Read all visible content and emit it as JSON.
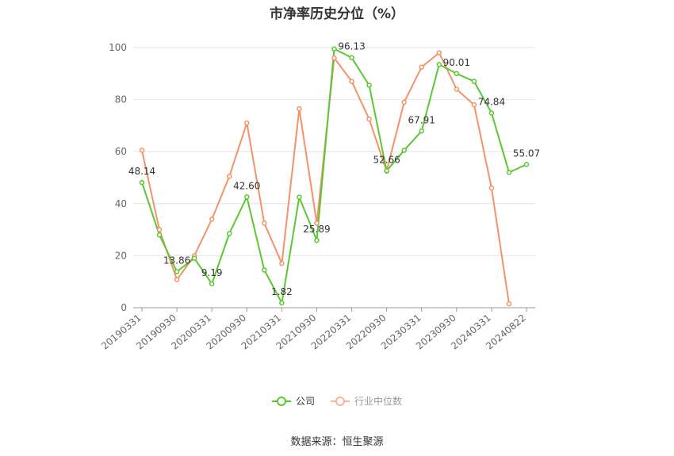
{
  "chart_data": {
    "type": "line",
    "title": "市净率历史分位（%）",
    "ylim": [
      0,
      100
    ],
    "yticks": [
      0,
      20,
      40,
      60,
      80,
      100
    ],
    "x_tick_labels": [
      "20190331",
      "20190930",
      "20200331",
      "20200930",
      "20210331",
      "20210930",
      "20220331",
      "20220930",
      "20230331",
      "20230930",
      "20240331",
      "20240822"
    ],
    "x": [
      "20190331",
      "20190630",
      "20190930",
      "20191231",
      "20200331",
      "20200630",
      "20200930",
      "20201231",
      "20210331",
      "20210630",
      "20210930",
      "20211231",
      "20220331",
      "20220630",
      "20220930",
      "20221231",
      "20230331",
      "20230630",
      "20230930",
      "20231231",
      "20240331",
      "20240630",
      "20240822"
    ],
    "series": [
      {
        "name": "公司",
        "color": "#5ac832",
        "values": [
          48.14,
          28.0,
          13.86,
          19.0,
          9.19,
          28.5,
          42.6,
          14.5,
          1.82,
          42.5,
          25.89,
          99.5,
          96.13,
          85.5,
          52.66,
          60.5,
          67.91,
          93.5,
          90.01,
          87.0,
          74.84,
          52.0,
          55.07
        ]
      },
      {
        "name": "行业中位数",
        "color": "#f4926a",
        "values": [
          60.5,
          30.0,
          10.8,
          20.0,
          34.0,
          50.5,
          71.0,
          32.5,
          17.0,
          76.5,
          32.5,
          96.0,
          87.0,
          72.5,
          52.5,
          79.0,
          92.5,
          98.0,
          84.0,
          78.0,
          46.0,
          1.5,
          null
        ]
      }
    ],
    "data_labels": [
      {
        "index": 0,
        "text": "48.14"
      },
      {
        "index": 2,
        "text": "13.86"
      },
      {
        "index": 4,
        "text": "9.19"
      },
      {
        "index": 6,
        "text": "42.60"
      },
      {
        "index": 8,
        "text": "1.82"
      },
      {
        "index": 10,
        "text": "25.89"
      },
      {
        "index": 12,
        "text": "96.13"
      },
      {
        "index": 14,
        "text": "52.66"
      },
      {
        "index": 16,
        "text": "67.91"
      },
      {
        "index": 18,
        "text": "90.01"
      },
      {
        "index": 20,
        "text": "74.84"
      },
      {
        "index": 22,
        "text": "55.07"
      }
    ],
    "legend_position": "bottom",
    "grid": true
  },
  "legend": {
    "company": "公司",
    "industry": "行业中位数"
  },
  "source": "数据来源：恒生聚源"
}
